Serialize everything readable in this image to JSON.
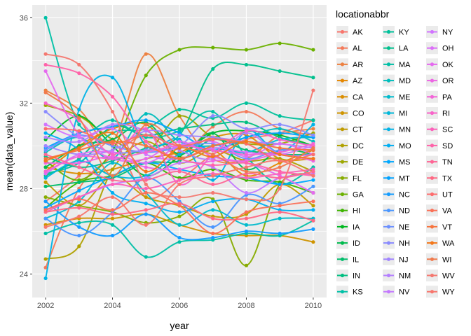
{
  "chart_data": {
    "type": "line",
    "xlabel": "year",
    "ylabel": "mean(data_value)",
    "x_ticks": [
      2002,
      2004,
      2006,
      2008,
      2010
    ],
    "y_ticks": [
      24,
      28,
      32,
      36
    ],
    "xlim": [
      2001.6,
      2010.4
    ],
    "ylim": [
      22.9,
      36.6
    ],
    "grid": true,
    "background": "#ebebeb",
    "legend": {
      "title": "locationabbr",
      "placement": "right",
      "columns": 3
    },
    "x": [
      2002,
      2003,
      2004,
      2005,
      2006,
      2007,
      2008,
      2009,
      2010
    ],
    "series": [
      {
        "name": "AK",
        "color": "#f8766d",
        "values": [
          27.4,
          28.6,
          30.2,
          27.6,
          28.4,
          29.6,
          30.3,
          30.6,
          31.2
        ]
      },
      {
        "name": "AL",
        "color": "#f47a5a",
        "values": [
          24.3,
          28.0,
          29.5,
          30.5,
          29.6,
          30.9,
          31.6,
          30.8,
          30.5
        ]
      },
      {
        "name": "AR",
        "color": "#ed8141",
        "values": [
          32.6,
          31.7,
          30.2,
          34.3,
          31.4,
          29.4,
          29.4,
          30.5,
          30.8
        ]
      },
      {
        "name": "AZ",
        "color": "#e58700",
        "values": [
          28.8,
          30.0,
          30.8,
          31.0,
          29.5,
          29.8,
          28.6,
          29.2,
          29.8
        ]
      },
      {
        "name": "CA",
        "color": "#db8e00",
        "values": [
          29.0,
          28.7,
          28.9,
          29.4,
          29.7,
          30.4,
          30.5,
          29.4,
          29.4
        ]
      },
      {
        "name": "CO",
        "color": "#cf9400",
        "values": [
          26.3,
          26.6,
          26.6,
          26.8,
          26.3,
          25.9,
          25.8,
          25.8,
          25.5
        ]
      },
      {
        "name": "CT",
        "color": "#c09b00",
        "values": [
          28.3,
          27.2,
          28.6,
          27.6,
          27.2,
          26.7,
          26.8,
          28.2,
          27.2
        ]
      },
      {
        "name": "DC",
        "color": "#b0a100",
        "values": [
          24.7,
          25.3,
          28.9,
          30.2,
          29.2,
          29.8,
          29.3,
          29.4,
          28.8
        ]
      },
      {
        "name": "DE",
        "color": "#9da700",
        "values": [
          31.9,
          31.4,
          30.3,
          29.7,
          31.4,
          30.4,
          30.1,
          30.1,
          30.6
        ]
      },
      {
        "name": "FL",
        "color": "#87ac00",
        "values": [
          27.6,
          27.2,
          26.9,
          26.4,
          26.7,
          27.5,
          24.4,
          28.2,
          28.7
        ]
      },
      {
        "name": "GA",
        "color": "#6bb100",
        "values": [
          29.3,
          28.4,
          29.8,
          33.3,
          34.5,
          34.6,
          34.5,
          34.8,
          34.5
        ]
      },
      {
        "name": "HI",
        "color": "#3eb500",
        "values": [
          27.1,
          28.3,
          28.6,
          29.2,
          28.5,
          28.9,
          28.4,
          28.3,
          27.8
        ]
      },
      {
        "name": "IA",
        "color": "#00b81f",
        "values": [
          30.3,
          31.4,
          30.0,
          28.6,
          29.5,
          30.6,
          30.7,
          30.5,
          30.0
        ]
      },
      {
        "name": "ID",
        "color": "#00bb4e",
        "values": [
          29.0,
          30.0,
          30.3,
          31.1,
          29.6,
          30.6,
          28.9,
          29.8,
          29.6
        ]
      },
      {
        "name": "IL",
        "color": "#00bd6b",
        "values": [
          28.1,
          28.3,
          28.5,
          29.2,
          29.3,
          30.3,
          29.8,
          29.6,
          29.6
        ]
      },
      {
        "name": "IN",
        "color": "#00bf81",
        "values": [
          28.6,
          29.4,
          30.9,
          30.5,
          30.8,
          31.0,
          31.1,
          30.4,
          30.0
        ]
      },
      {
        "name": "KS",
        "color": "#00c1a7",
        "values": [
          36.0,
          31.0,
          31.2,
          30.4,
          30.7,
          31.6,
          29.5,
          28.2,
          29.0
        ]
      },
      {
        "name": "KY",
        "color": "#00c19b",
        "values": [
          28.7,
          29.2,
          30.6,
          30.8,
          31.7,
          31.3,
          32.0,
          31.4,
          31.2
        ]
      },
      {
        "name": "LA",
        "color": "#00c08d",
        "values": [
          29.5,
          29.0,
          29.3,
          29.9,
          30.5,
          33.6,
          33.8,
          33.5,
          33.2
        ]
      },
      {
        "name": "MA",
        "color": "#00bfa6",
        "values": [
          25.9,
          26.4,
          26.3,
          24.8,
          25.5,
          25.6,
          25.9,
          25.8,
          26.5
        ]
      },
      {
        "name": "MD",
        "color": "#00bdbc",
        "values": [
          29.7,
          30.4,
          29.4,
          31.5,
          30.2,
          30.0,
          30.4,
          30.8,
          30.2
        ]
      },
      {
        "name": "ME",
        "color": "#00bbcc",
        "values": [
          26.6,
          27.4,
          29.2,
          27.8,
          26.3,
          27.0,
          26.3,
          26.6,
          26.6
        ]
      },
      {
        "name": "MI",
        "color": "#00b8da",
        "values": [
          28.5,
          29.3,
          28.6,
          28.6,
          29.6,
          29.9,
          29.7,
          30.3,
          30.4
        ]
      },
      {
        "name": "MN",
        "color": "#00b3e7",
        "values": [
          23.8,
          31.7,
          33.2,
          30.0,
          30.3,
          28.4,
          30.7,
          29.7,
          31.0
        ]
      },
      {
        "name": "MO",
        "color": "#00aef2",
        "values": [
          30.6,
          29.8,
          27.8,
          27.3,
          26.9,
          27.4,
          27.5,
          27.0,
          27.0
        ]
      },
      {
        "name": "MS",
        "color": "#00a8ff",
        "values": [
          27.1,
          27.9,
          28.6,
          29.2,
          28.9,
          28.6,
          28.5,
          28.2,
          28.4
        ]
      },
      {
        "name": "MT",
        "color": "#00a2ff",
        "values": [
          29.9,
          30.6,
          30.9,
          31.2,
          30.6,
          29.8,
          30.4,
          30.6,
          30.4
        ]
      },
      {
        "name": "NC",
        "color": "#149cff",
        "values": [
          27.4,
          26.2,
          25.8,
          26.8,
          25.7,
          25.7,
          26.0,
          25.9,
          26.1
        ]
      },
      {
        "name": "ND",
        "color": "#4a96ff",
        "values": [
          26.6,
          25.8,
          26.9,
          28.5,
          27.4,
          26.2,
          27.7,
          27.3,
          28.1
        ]
      },
      {
        "name": "NE",
        "color": "#6c90ff",
        "values": [
          29.8,
          30.5,
          30.0,
          29.7,
          29.9,
          30.1,
          29.4,
          29.8,
          29.8
        ]
      },
      {
        "name": "NH",
        "color": "#8a8bff",
        "values": [
          31.6,
          30.4,
          29.7,
          29.8,
          30.0,
          31.4,
          30.8,
          31.0,
          30.5
        ]
      },
      {
        "name": "NJ",
        "color": "#a185ff",
        "values": [
          30.0,
          29.6,
          29.8,
          30.7,
          30.5,
          30.4,
          30.2,
          30.1,
          29.9
        ]
      },
      {
        "name": "NM",
        "color": "#b47fff",
        "values": [
          30.4,
          30.2,
          31.0,
          30.7,
          29.8,
          29.4,
          30.6,
          29.6,
          29.6
        ]
      },
      {
        "name": "NV",
        "color": "#c479ff",
        "values": [
          27.0,
          27.6,
          28.2,
          28.5,
          29.2,
          29.0,
          27.8,
          28.5,
          28.7
        ]
      },
      {
        "name": "NY",
        "color": "#d174ff",
        "values": [
          31.0,
          30.4,
          30.8,
          29.6,
          29.4,
          29.9,
          29.7,
          29.6,
          30.0
        ]
      },
      {
        "name": "OH",
        "color": "#dc6ff8",
        "values": [
          28.7,
          29.6,
          29.7,
          29.2,
          30.0,
          30.2,
          29.5,
          30.1,
          29.6
        ]
      },
      {
        "name": "OK",
        "color": "#e56aef",
        "values": [
          33.5,
          30.5,
          29.4,
          29.4,
          30.2,
          29.5,
          29.2,
          28.6,
          27.8
        ]
      },
      {
        "name": "OR",
        "color": "#ed66e4",
        "values": [
          29.2,
          29.2,
          29.5,
          29.0,
          28.9,
          29.3,
          29.3,
          29.6,
          29.3
        ]
      },
      {
        "name": "PA",
        "color": "#f364d8",
        "values": [
          28.8,
          29.5,
          29.4,
          29.7,
          30.0,
          29.8,
          29.6,
          29.7,
          30.1
        ]
      },
      {
        "name": "RI",
        "color": "#f863c9",
        "values": [
          32.0,
          31.2,
          29.6,
          30.8,
          28.2,
          29.6,
          30.7,
          30.3,
          30.0
        ]
      },
      {
        "name": "SC",
        "color": "#fc62ba",
        "values": [
          26.9,
          27.6,
          28.2,
          28.0,
          28.4,
          28.7,
          28.5,
          28.7,
          28.9
        ]
      },
      {
        "name": "SD",
        "color": "#ff63a9",
        "values": [
          33.8,
          33.4,
          32.3,
          30.2,
          29.4,
          29.1,
          29.2,
          28.8,
          28.6
        ]
      },
      {
        "name": "TN",
        "color": "#ff6596",
        "values": [
          29.6,
          29.0,
          28.4,
          28.4,
          28.8,
          28.2,
          28.7,
          28.5,
          28.8
        ]
      },
      {
        "name": "TX",
        "color": "#ff6883",
        "values": [
          26.9,
          27.1,
          26.8,
          27.0,
          27.3,
          26.6,
          26.6,
          26.9,
          26.5
        ]
      },
      {
        "name": "UT",
        "color": "#fe6c6d",
        "values": [
          30.8,
          30.7,
          30.1,
          30.5,
          30.0,
          30.3,
          30.1,
          29.3,
          29.6
        ]
      },
      {
        "name": "VA",
        "color": "#fb7057",
        "values": [
          27.0,
          27.5,
          27.0,
          27.8,
          27.2,
          25.9,
          26.9,
          27.2,
          27.4
        ]
      },
      {
        "name": "VT",
        "color": "#f7743e",
        "values": [
          29.4,
          29.8,
          30.2,
          30.0,
          29.4,
          30.0,
          30.2,
          29.9,
          29.8
        ]
      },
      {
        "name": "WA",
        "color": "#f3771a",
        "values": [
          29.3,
          29.9,
          30.6,
          28.8,
          29.9,
          29.5,
          30.2,
          29.6,
          29.4
        ]
      },
      {
        "name": "WI",
        "color": "#f07a4c",
        "values": [
          32.5,
          31.3,
          28.6,
          31.0,
          30.0,
          29.6,
          28.8,
          29.0,
          29.9
        ]
      },
      {
        "name": "WV",
        "color": "#f47870",
        "values": [
          34.3,
          33.8,
          31.6,
          28.2,
          27.6,
          27.8,
          27.5,
          28.0,
          32.6
        ]
      },
      {
        "name": "WY",
        "color": "#f8766d",
        "values": [
          26.2,
          26.7,
          27.6,
          26.3,
          28.2,
          28.6,
          29.0,
          29.3,
          28.6
        ]
      }
    ]
  }
}
